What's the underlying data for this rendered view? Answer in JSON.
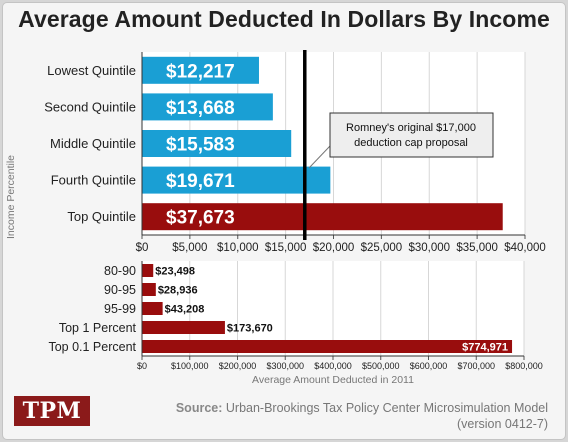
{
  "title": "Average Amount Deducted In Dollars By Income",
  "annotation": {
    "line1": "Romney's original $17,000",
    "line2": "deduction cap proposal",
    "cap_value": 17000
  },
  "source": {
    "label": "Source:",
    "text": "Urban-Brookings Tax Policy Center Microsimulation Model",
    "version": "(version 0412-7)"
  },
  "logo_text": "TPM",
  "colors": {
    "blue": "#1a9fd4",
    "red": "#990d0d",
    "grid": "#d7d7d7"
  },
  "chart_data": [
    {
      "type": "bar",
      "orientation": "horizontal",
      "ylabel": "Income Percentile",
      "categories": [
        "Lowest Quintile",
        "Second Quintile",
        "Middle Quintile",
        "Fourth Quintile",
        "Top Quintile"
      ],
      "values": [
        12217,
        13668,
        15583,
        19671,
        37673
      ],
      "value_labels": [
        "$12,217",
        "$13,668",
        "$15,583",
        "$19,671",
        "$37,673"
      ],
      "xlim": [
        0,
        40000
      ],
      "xticks": [
        0,
        5000,
        10000,
        15000,
        20000,
        25000,
        30000,
        35000,
        40000
      ],
      "xtick_labels": [
        "$0",
        "$5,000",
        "$10,000",
        "$15,000",
        "$20,000",
        "$25,000",
        "$30,000",
        "$35,000",
        "$40,000"
      ],
      "grid": true
    },
    {
      "type": "bar",
      "orientation": "horizontal",
      "xlabel": "Average Amount Deducted in 2011",
      "categories": [
        "80-90",
        "90-95",
        "95-99",
        "Top 1 Percent",
        "Top 0.1 Percent"
      ],
      "values": [
        23498,
        28936,
        43208,
        173670,
        774971
      ],
      "value_labels": [
        "$23,498",
        "$28,936",
        "$43,208",
        "$173,670",
        "$774,971"
      ],
      "xlim": [
        0,
        800000
      ],
      "xticks": [
        0,
        100000,
        200000,
        300000,
        400000,
        500000,
        600000,
        700000,
        800000
      ],
      "xtick_labels": [
        "$0",
        "$100,000",
        "$200,000",
        "$300,000",
        "$400,000",
        "$500,000",
        "$600,000",
        "$700,000",
        "$800,000"
      ],
      "grid": true
    }
  ]
}
